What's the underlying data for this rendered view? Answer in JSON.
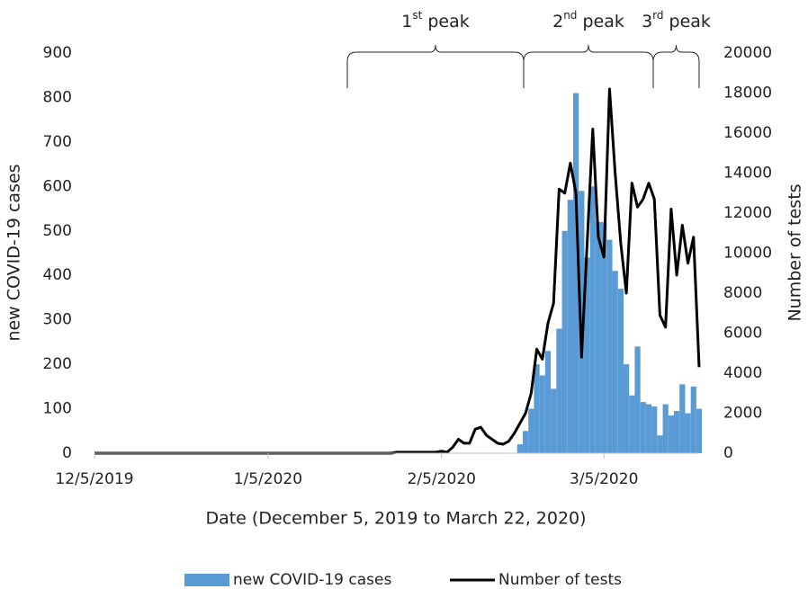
{
  "chart_data": {
    "type": "bar-line",
    "x_label": "Date (December 5, 2019 to March 22, 2020)",
    "y_label": "new COVID-19 cases",
    "y2_label": "Number of tests",
    "categories": [
      "12/5/2019",
      null,
      null,
      null,
      null,
      null,
      null,
      null,
      null,
      null,
      null,
      null,
      null,
      null,
      null,
      null,
      null,
      null,
      null,
      null,
      null,
      null,
      null,
      null,
      null,
      null,
      null,
      null,
      null,
      null,
      null,
      "1/5/2020",
      null,
      null,
      null,
      null,
      null,
      null,
      null,
      null,
      null,
      null,
      null,
      null,
      null,
      null,
      null,
      null,
      null,
      null,
      null,
      null,
      null,
      null,
      null,
      null,
      null,
      null,
      null,
      null,
      null,
      null,
      "2/5/2020",
      null,
      null,
      null,
      null,
      null,
      null,
      null,
      null,
      null,
      null,
      null,
      null,
      null,
      null,
      null,
      null,
      null,
      null,
      null,
      null,
      null,
      null,
      null,
      null,
      null,
      null,
      null,
      null,
      "3/5/2020",
      null,
      null,
      null,
      null,
      null,
      null,
      null,
      null,
      null,
      null,
      null,
      null,
      null,
      null,
      null,
      null,
      null
    ],
    "ylim": [
      0,
      900
    ],
    "yticks": [
      0,
      100,
      200,
      300,
      400,
      500,
      600,
      700,
      800,
      900
    ],
    "y2lim": [
      0,
      20000
    ],
    "y2ticks": [
      0,
      2000,
      4000,
      6000,
      8000,
      10000,
      12000,
      14000,
      16000,
      18000,
      20000
    ],
    "annotations": [
      {
        "parts": [
          "1",
          "st",
          " peak"
        ]
      },
      {
        "parts": [
          "2",
          "nd",
          " peak"
        ]
      },
      {
        "parts": [
          "3",
          "rd",
          " peak"
        ]
      }
    ],
    "series": [
      {
        "name": "new COVID-19 cases",
        "type": "bar",
        "color": "#5b9bd5",
        "values": [
          0,
          0,
          0,
          0,
          0,
          0,
          0,
          0,
          0,
          0,
          0,
          0,
          0,
          0,
          0,
          0,
          0,
          0,
          0,
          0,
          0,
          0,
          0,
          0,
          0,
          0,
          0,
          0,
          0,
          0,
          0,
          0,
          0,
          0,
          0,
          0,
          0,
          0,
          0,
          0,
          0,
          0,
          0,
          0,
          0,
          0,
          0,
          0,
          0,
          0,
          0,
          0,
          0,
          0,
          0,
          0,
          0,
          0,
          0,
          0,
          0,
          0,
          0,
          0,
          0,
          0,
          0,
          0,
          0,
          0,
          0,
          0,
          0,
          0,
          0,
          0,
          20,
          50,
          100,
          200,
          175,
          230,
          145,
          280,
          500,
          570,
          810,
          590,
          440,
          600,
          520,
          520,
          480,
          410,
          370,
          200,
          130,
          240,
          115,
          110,
          105,
          40,
          110,
          85,
          95,
          155,
          90,
          150,
          100
        ]
      },
      {
        "name": "Number of tests",
        "type": "line",
        "axis": "y2",
        "color": "#000000",
        "values": [
          0,
          0,
          0,
          0,
          0,
          0,
          0,
          0,
          0,
          0,
          0,
          0,
          0,
          0,
          0,
          0,
          0,
          0,
          0,
          0,
          0,
          0,
          0,
          0,
          0,
          0,
          0,
          0,
          0,
          0,
          0,
          0,
          0,
          0,
          0,
          0,
          0,
          0,
          0,
          0,
          0,
          0,
          0,
          0,
          0,
          0,
          0,
          0,
          0,
          0,
          0,
          0,
          0,
          0,
          50,
          50,
          50,
          50,
          50,
          50,
          50,
          50,
          100,
          50,
          300,
          700,
          500,
          500,
          1200,
          1300,
          900,
          700,
          500,
          450,
          600,
          1000,
          1500,
          2000,
          3000,
          5200,
          4700,
          6500,
          7500,
          13200,
          13000,
          14500,
          13000,
          4800,
          10500,
          16200,
          10800,
          9800,
          18200,
          14000,
          10500,
          8000,
          13500,
          12300,
          12700,
          13500,
          12700,
          6900,
          6300,
          12200,
          8900,
          11400,
          9500,
          10800,
          4300
        ]
      }
    ]
  }
}
